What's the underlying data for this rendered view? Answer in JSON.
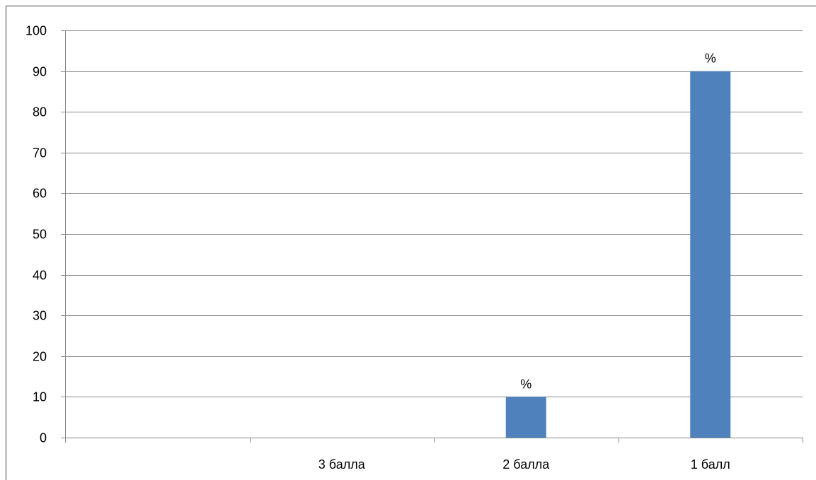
{
  "chart_data": {
    "type": "bar",
    "categories": [
      "",
      "3 балла",
      "2 балла",
      "1 балл"
    ],
    "series": [
      {
        "values": [
          0,
          0,
          10,
          90
        ]
      }
    ],
    "data_labels": [
      "",
      "",
      "%",
      "%"
    ],
    "ylim": [
      0,
      100
    ],
    "yticks": [
      0,
      10,
      20,
      30,
      40,
      50,
      60,
      70,
      80,
      90,
      100
    ],
    "grid": true,
    "legend": "none",
    "title": "",
    "xlabel": "",
    "ylabel": "",
    "colors": {
      "bar": "#4f81bd",
      "grid": "#868686",
      "axis": "#868686",
      "frame": "#868686"
    }
  }
}
